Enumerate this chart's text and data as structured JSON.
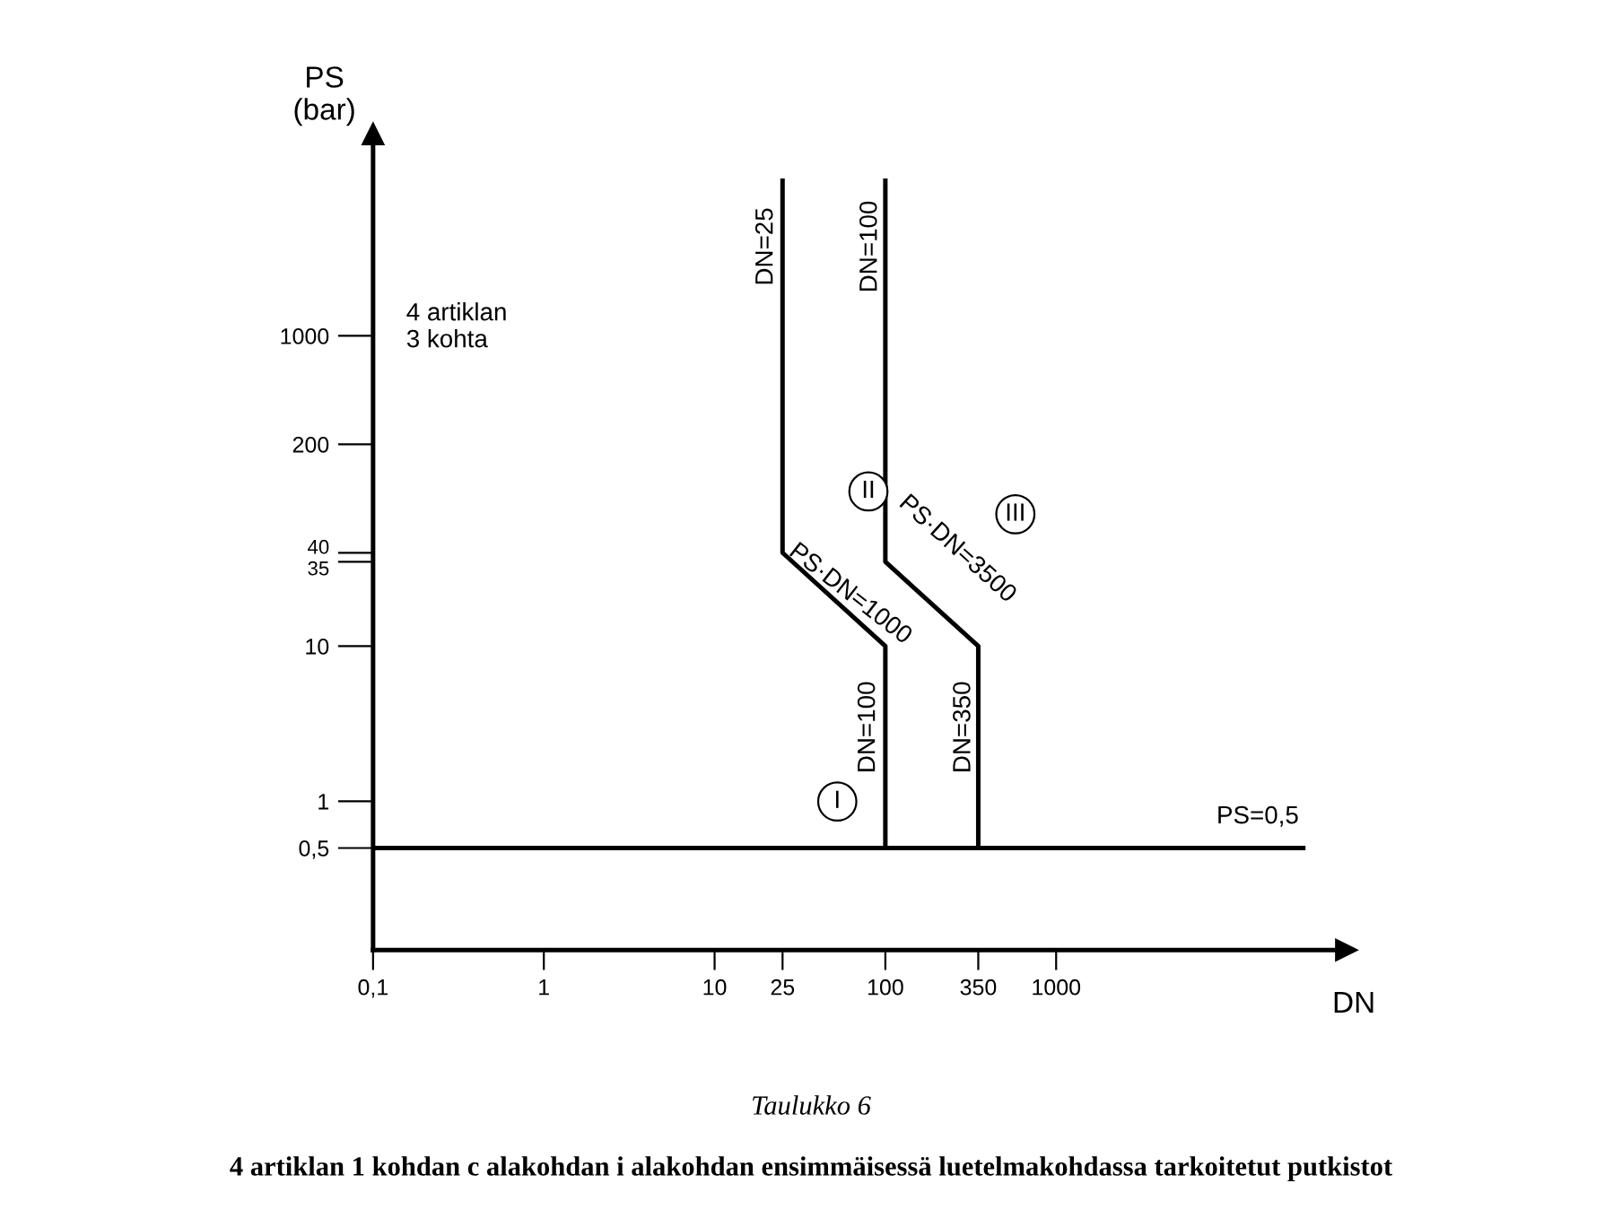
{
  "chart_data": {
    "type": "line",
    "title": "Taulukko 6",
    "subtitle": "4 artiklan 1 kohdan c alakohdan i alakohdan ensimmäisessä luetelmakohdassa tarkoitetut putkistot",
    "xlabel": "DN",
    "ylabel": "PS\n(bar)",
    "log": "xy",
    "xlim": [
      0.1,
      50000
    ],
    "ylim": [
      0.11,
      20000
    ],
    "xticks": [
      {
        "value": 0.1,
        "label": "0,1"
      },
      1,
      10,
      25,
      100,
      350,
      1000
    ],
    "yticks": [
      {
        "value": 0.5,
        "label": "0,5"
      },
      1,
      10,
      35,
      40,
      200,
      1000
    ],
    "grid": false,
    "marker": "none",
    "line_style": "solid",
    "series": [
      {
        "color": "#000000",
        "x": [
          25,
          25,
          100,
          100
        ],
        "values": [
          10000,
          40,
          10,
          0.5
        ]
      },
      {
        "color": "#000000",
        "x": [
          100,
          100,
          350,
          350
        ],
        "values": [
          10000,
          35,
          10,
          0.5
        ]
      },
      {
        "color": "#000000",
        "x": [
          0.1,
          28000
        ],
        "values": [
          0.5,
          0.5
        ]
      }
    ],
    "annotations": [
      "DN=25",
      "DN=100",
      "PS·DN=1000",
      "PS·DN=3500",
      "DN=100",
      "DN=350",
      "PS=0,5",
      "I",
      "II",
      "III",
      "4 artiklan\n3 kohta"
    ]
  }
}
